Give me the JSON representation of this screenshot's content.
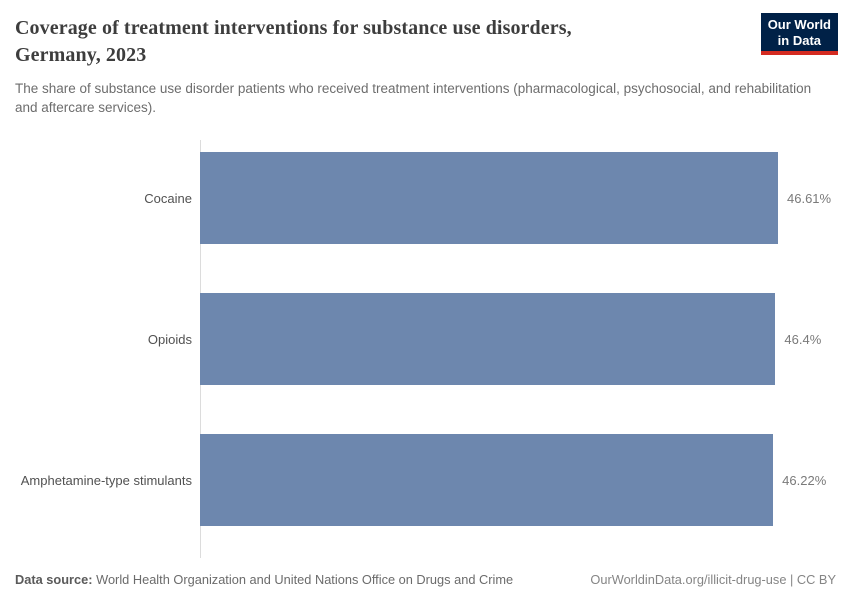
{
  "header": {
    "title": "Coverage of treatment interventions for substance use disorders, Germany, 2023",
    "title_lines": {
      "line1": "Coverage of treatment interventions for substance use disorders,",
      "line2": "Germany, 2023"
    },
    "subtitle": "The share of substance use disorder patients who received treatment interventions (pharmacological, psychosocial, and rehabilitation and aftercare services)."
  },
  "logo": {
    "line1": "Our World",
    "line2": "in Data"
  },
  "chart_data": {
    "type": "bar",
    "orientation": "horizontal",
    "title": "Coverage of treatment interventions for substance use disorders, Germany, 2023",
    "categories": [
      "Cocaine",
      "Opioids",
      "Amphetamine-type stimulants"
    ],
    "values": [
      46.61,
      46.4,
      46.22
    ],
    "value_labels": [
      "46.61%",
      "46.4%",
      "46.22%"
    ],
    "unit": "%",
    "xlabel": "",
    "ylabel": "",
    "xlim": [
      0,
      46.61
    ],
    "grid": false,
    "legend": "none"
  },
  "footer": {
    "source_label": "Data source:",
    "source_text": "World Health Organization and United Nations Office on Drugs and Crime",
    "citation": "OurWorldinData.org/illicit-drug-use | CC BY"
  },
  "colors": {
    "bar_color": "#6d87ae",
    "logo_bg": "#002147",
    "logo_red": "#d42b21",
    "title_color": "#3d3d3d",
    "subtitle_color": "#6d6d6d",
    "axis_line_color": "#dcdcdc",
    "value_label_color": "#7a7a7a",
    "category_label_color": "#515151"
  }
}
